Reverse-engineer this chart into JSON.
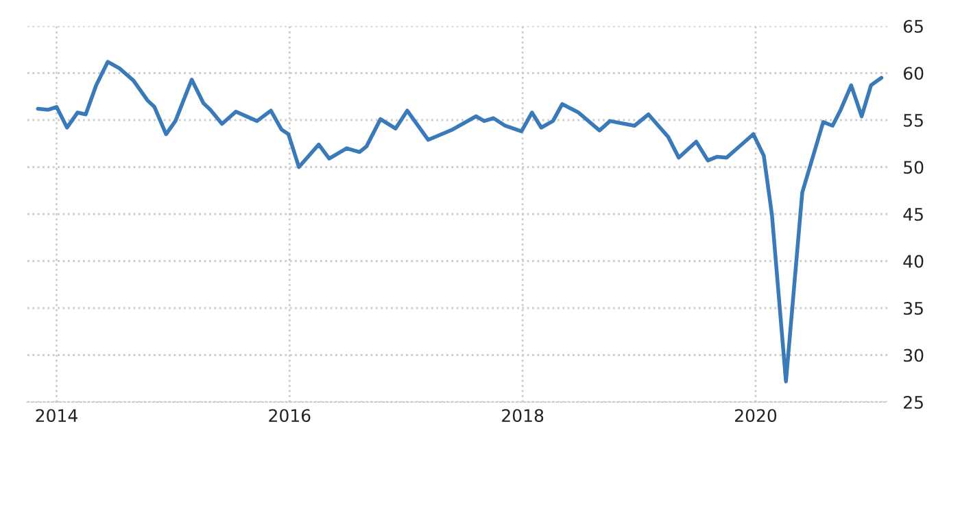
{
  "chart_data": {
    "type": "line",
    "x": [
      2013.84,
      2013.93,
      2014.0,
      2014.09,
      2014.18,
      2014.25,
      2014.34,
      2014.44,
      2014.54,
      2014.66,
      2014.78,
      2014.84,
      2014.94,
      2015.02,
      2015.16,
      2015.26,
      2015.32,
      2015.42,
      2015.54,
      2015.72,
      2015.84,
      2015.93,
      2015.99,
      2016.08,
      2016.25,
      2016.34,
      2016.49,
      2016.6,
      2016.66,
      2016.78,
      2016.91,
      2017.01,
      2017.19,
      2017.4,
      2017.6,
      2017.67,
      2017.75,
      2017.85,
      2017.99,
      2018.08,
      2018.16,
      2018.26,
      2018.34,
      2018.48,
      2018.66,
      2018.75,
      2018.96,
      2019.08,
      2019.25,
      2019.34,
      2019.49,
      2019.59,
      2019.67,
      2019.75,
      2019.87,
      2019.98,
      2020.07,
      2020.14,
      2020.26,
      2020.4,
      2020.46,
      2020.58,
      2020.66,
      2020.73,
      2020.82,
      2020.91,
      2020.99,
      2021.08
    ],
    "series": [
      {
        "color": "#3a7ab8",
        "values": [
          56.2,
          56.1,
          56.4,
          54.2,
          55.8,
          55.6,
          58.7,
          61.2,
          60.5,
          59.2,
          57.1,
          56.4,
          53.5,
          54.9,
          59.3,
          56.8,
          56.1,
          54.6,
          55.9,
          54.9,
          56.0,
          54.0,
          53.5,
          50.0,
          52.4,
          50.9,
          52.0,
          51.6,
          52.2,
          55.1,
          54.1,
          56.0,
          52.9,
          54.0,
          55.4,
          54.9,
          55.2,
          54.4,
          53.8,
          55.8,
          54.2,
          54.9,
          56.7,
          55.8,
          53.9,
          54.9,
          54.4,
          55.6,
          53.2,
          51.0,
          52.7,
          50.7,
          51.1,
          51.0,
          52.3,
          53.5,
          51.2,
          44.9,
          27.2,
          47.3,
          49.8,
          54.8,
          54.4,
          56.1,
          58.7,
          55.4,
          58.7,
          59.5
        ]
      }
    ],
    "xlim": [
      2013.75,
      2021.13
    ],
    "xticks": [
      2014,
      2016,
      2018,
      2020
    ],
    "ylim": [
      25,
      65
    ],
    "yticks": [
      25,
      30,
      35,
      40,
      45,
      50,
      55,
      60,
      65
    ],
    "grid": true,
    "line_style": "solid",
    "marker": "none"
  }
}
